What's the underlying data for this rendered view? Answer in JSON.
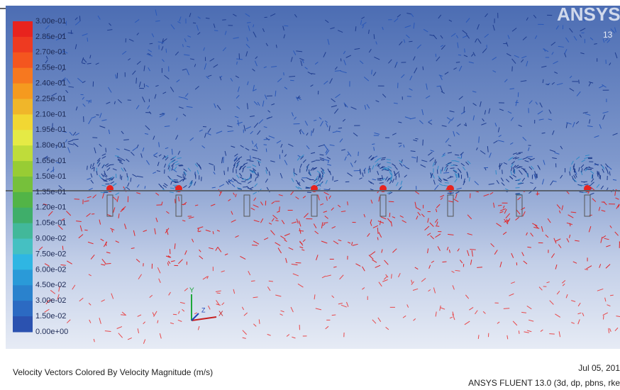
{
  "colorbar": {
    "labels": [
      "3.00e-01",
      "2.85e-01",
      "2.70e-01",
      "2.55e-01",
      "2.40e-01",
      "2.25e-01",
      "2.10e-01",
      "1.95e-01",
      "1.80e-01",
      "1.65e-01",
      "1.50e-01",
      "1.35e-01",
      "1.20e-01",
      "1.05e-01",
      "9.00e-02",
      "7.50e-02",
      "6.00e-02",
      "4.50e-02",
      "3.00e-02",
      "1.50e-02",
      "0.00e+00"
    ]
  },
  "logo": {
    "brand": "ANSYS",
    "version": "13"
  },
  "axes_triad": {
    "x": "X",
    "y": "Y",
    "z": "Z"
  },
  "footer": {
    "caption": "Velocity Vectors Colored By Velocity Magnitude (m/s)",
    "date": "Jul 05, 201",
    "solver": "ANSYS FLUENT 13.0 (3d, dp, pbns, rke"
  }
}
